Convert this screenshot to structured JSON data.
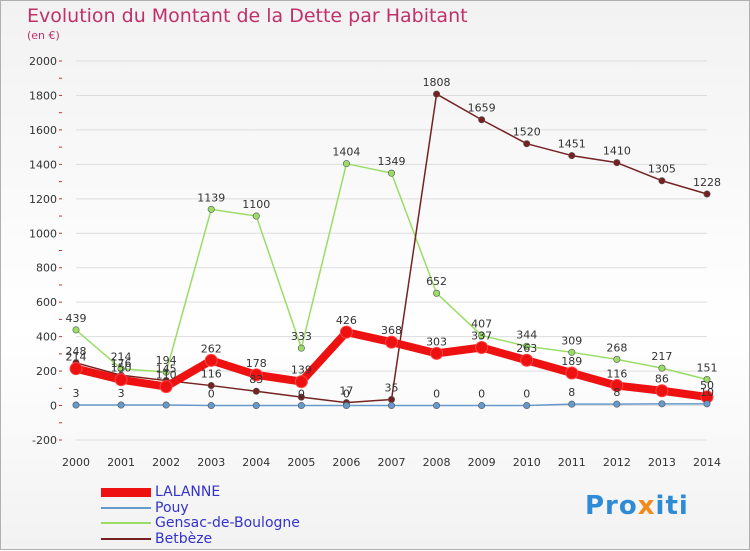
{
  "header": {
    "title": "Evolution du Montant de la Dette par Habitant",
    "subtitle": "(en €)"
  },
  "logo": {
    "text": "Proxiti",
    "parts": [
      "Pro",
      "x",
      "iti"
    ]
  },
  "colors": {
    "title": "#c0306a",
    "axis_text": "#333333",
    "legend_text": "#3333cc",
    "grid": "#dddddd",
    "tick_mark": "#cc3333"
  },
  "legend": [
    {
      "label": "LALANNE",
      "color": "#ee1111"
    },
    {
      "label": "Pouy",
      "color": "#6699cc"
    },
    {
      "label": "Gensac-de-Boulogne",
      "color": "#99dd66"
    },
    {
      "label": "Betbèze",
      "color": "#772222"
    }
  ],
  "chart_data": {
    "type": "line",
    "title": "Evolution du Montant de la Dette par Habitant",
    "subtitle": "(en €)",
    "x": [
      "2000",
      "2001",
      "2002",
      "2003",
      "2004",
      "2005",
      "2006",
      "2007",
      "2008",
      "2009",
      "2010",
      "2011",
      "2012",
      "2013",
      "2014"
    ],
    "ylim": [
      -200,
      2000
    ],
    "yticks": [
      -200,
      0,
      200,
      400,
      600,
      800,
      1000,
      1200,
      1400,
      1600,
      1800,
      2000
    ],
    "grid": "horizontal",
    "legend_position": "bottom-left",
    "series": [
      {
        "name": "LALANNE",
        "color": "#ee1111",
        "values": [
          214,
          150,
          110,
          262,
          178,
          139,
          426,
          368,
          303,
          337,
          263,
          189,
          116,
          86,
          50
        ],
        "labels": [
          "214",
          "150",
          "110",
          "262",
          "178",
          "139",
          "426",
          "368",
          "303",
          "337",
          "263",
          "189",
          "116",
          "86",
          "50"
        ]
      },
      {
        "name": "Pouy",
        "color": "#6699cc",
        "values": [
          3,
          3,
          3,
          0,
          0,
          0,
          0,
          0,
          0,
          0,
          0,
          8,
          8,
          10,
          10
        ],
        "labels": [
          "3",
          "3",
          "",
          "0",
          "",
          "0",
          "0",
          "",
          "0",
          "0",
          "0",
          "8",
          "8",
          "",
          "10"
        ]
      },
      {
        "name": "Gensac-de-Boulogne",
        "color": "#99dd66",
        "values": [
          439,
          214,
          194,
          1139,
          1100,
          333,
          1404,
          1349,
          652,
          407,
          344,
          309,
          268,
          217,
          151
        ],
        "labels": [
          "439",
          "214",
          "194",
          "1139",
          "1100",
          "333",
          "1404",
          "1349",
          "652",
          "407",
          "344",
          "309",
          "268",
          "217",
          "151"
        ]
      },
      {
        "name": "Betbèze",
        "color": "#772222",
        "values": [
          248,
          176,
          145,
          116,
          83,
          49,
          17,
          35,
          1808,
          1659,
          1520,
          1451,
          1410,
          1305,
          1228
        ],
        "labels": [
          "248",
          "176",
          "145",
          "116",
          "83",
          "",
          "17",
          "35",
          "1808",
          "1659",
          "1520",
          "1451",
          "1410",
          "1305",
          "1228"
        ]
      }
    ]
  }
}
